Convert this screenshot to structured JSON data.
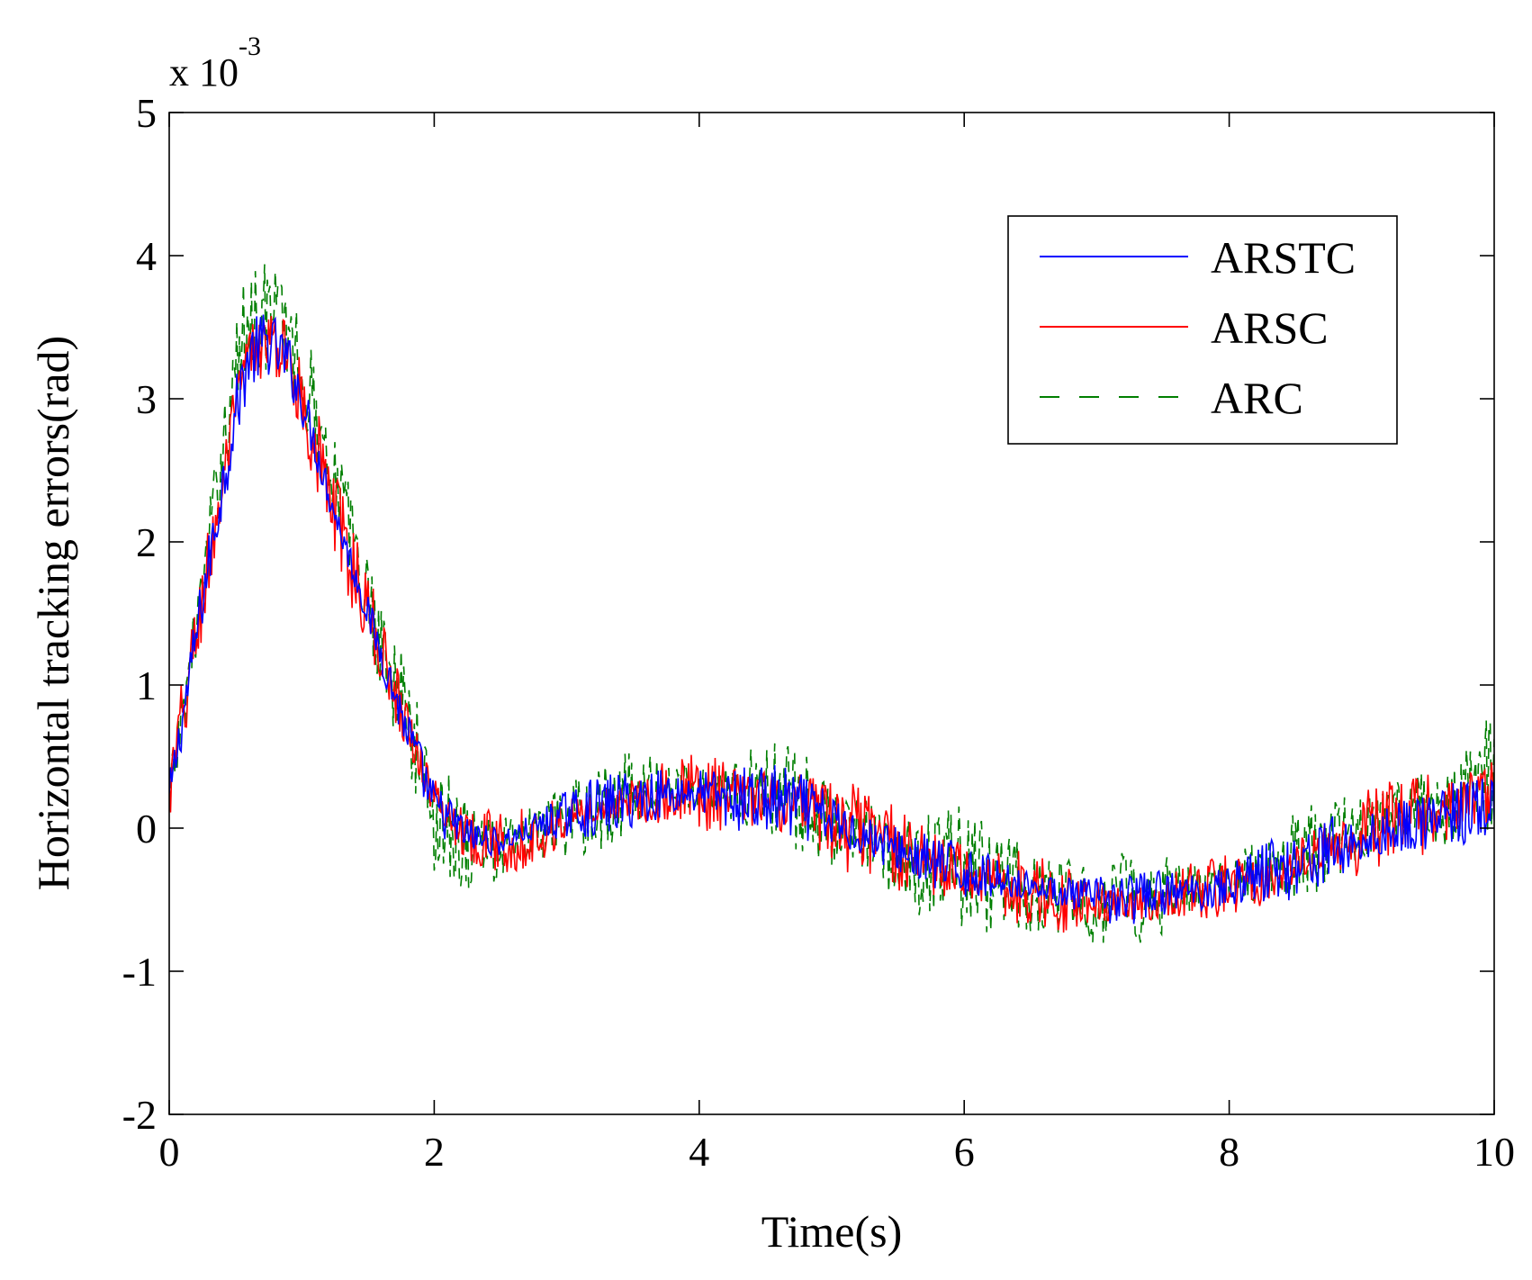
{
  "chart_data": {
    "type": "line",
    "title": "",
    "xlabel": "Time(s)",
    "ylabel": "Horizontal tracking errors(rad)",
    "y_scale_label": {
      "base": "x 10",
      "exponent": "-3"
    },
    "xlim": [
      0,
      10
    ],
    "ylim": [
      -2,
      5
    ],
    "x_ticks": [
      0,
      2,
      4,
      6,
      8,
      10
    ],
    "x_tick_labels": [
      "0",
      "2",
      "4",
      "6",
      "8",
      "10"
    ],
    "y_ticks": [
      -2,
      -1,
      0,
      1,
      2,
      3,
      4,
      5
    ],
    "y_tick_labels": [
      "-2",
      "-1",
      "0",
      "1",
      "2",
      "3",
      "4",
      "5"
    ],
    "grid": false,
    "legend_position": "top-right",
    "x": [
      0,
      0.25,
      0.5,
      0.6,
      0.75,
      0.9,
      1.0,
      1.25,
      1.5,
      1.75,
      2.0,
      2.25,
      2.5,
      2.75,
      3.0,
      3.25,
      3.5,
      3.75,
      4.0,
      4.25,
      4.5,
      4.75,
      5.0,
      5.25,
      5.5,
      5.75,
      6.0,
      6.25,
      6.5,
      6.75,
      7.0,
      7.25,
      7.5,
      7.75,
      8.0,
      8.25,
      8.5,
      8.75,
      9.0,
      9.25,
      9.5,
      9.75,
      10.0
    ],
    "series": [
      {
        "name": "ARSTC",
        "color": "#0000ff",
        "dash": "solid",
        "noise_amplitude": 0.35,
        "values": [
          0.2,
          1.6,
          2.9,
          3.3,
          3.4,
          3.25,
          3.0,
          2.2,
          1.5,
          0.8,
          0.15,
          -0.05,
          -0.1,
          0.0,
          0.1,
          0.15,
          0.2,
          0.25,
          0.25,
          0.2,
          0.2,
          0.15,
          0.05,
          -0.05,
          -0.15,
          -0.25,
          -0.3,
          -0.35,
          -0.4,
          -0.45,
          -0.5,
          -0.5,
          -0.45,
          -0.45,
          -0.4,
          -0.3,
          -0.25,
          -0.15,
          -0.1,
          0.0,
          0.05,
          0.1,
          0.15
        ]
      },
      {
        "name": "ARSC",
        "color": "#ff0000",
        "dash": "solid",
        "noise_amplitude": 0.45,
        "values": [
          0.2,
          1.6,
          2.9,
          3.3,
          3.4,
          3.3,
          3.0,
          2.2,
          1.5,
          0.85,
          0.2,
          -0.05,
          -0.1,
          -0.05,
          0.05,
          0.15,
          0.2,
          0.25,
          0.25,
          0.2,
          0.2,
          0.15,
          0.05,
          -0.05,
          -0.15,
          -0.25,
          -0.3,
          -0.35,
          -0.45,
          -0.5,
          -0.5,
          -0.55,
          -0.5,
          -0.45,
          -0.4,
          -0.35,
          -0.25,
          -0.15,
          -0.05,
          0.05,
          0.1,
          0.15,
          0.25
        ]
      },
      {
        "name": "ARC",
        "color": "#007f00",
        "dash": "dashed",
        "noise_amplitude": 0.6,
        "values": [
          0.2,
          1.7,
          3.2,
          3.6,
          3.6,
          3.5,
          3.2,
          2.5,
          1.6,
          0.9,
          0.1,
          -0.1,
          -0.15,
          -0.05,
          0.05,
          0.15,
          0.25,
          0.3,
          0.3,
          0.25,
          0.3,
          0.2,
          0.05,
          -0.05,
          -0.2,
          -0.25,
          -0.3,
          -0.35,
          -0.45,
          -0.5,
          -0.5,
          -0.5,
          -0.45,
          -0.45,
          -0.35,
          -0.3,
          -0.2,
          -0.1,
          0.0,
          0.1,
          0.15,
          0.25,
          0.45
        ]
      }
    ]
  }
}
